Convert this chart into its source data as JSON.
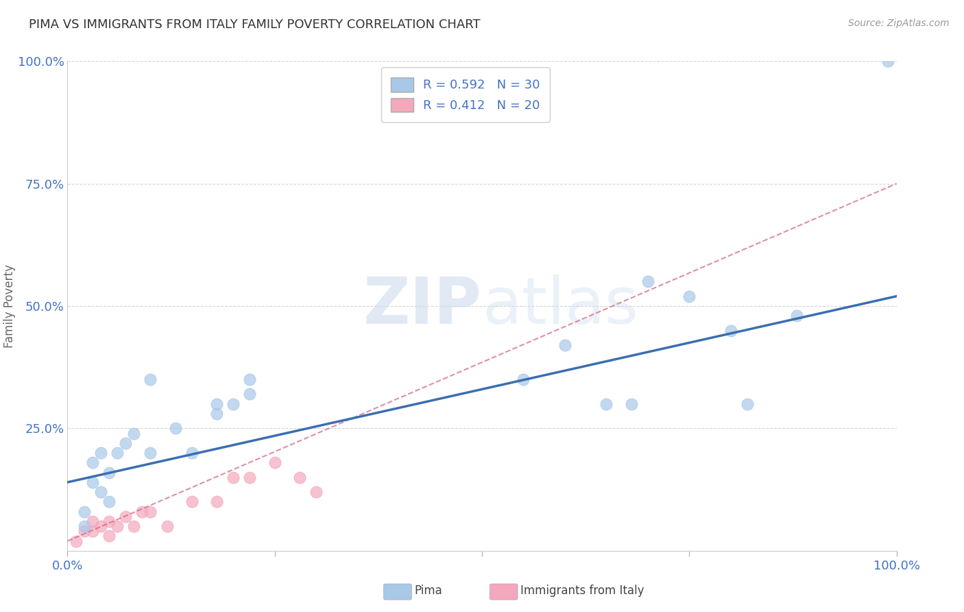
{
  "title": "PIMA VS IMMIGRANTS FROM ITALY FAMILY POVERTY CORRELATION CHART",
  "source": "Source: ZipAtlas.com",
  "xlabel": "",
  "ylabel": "Family Poverty",
  "xlim": [
    0,
    100
  ],
  "ylim": [
    0,
    100
  ],
  "xticks": [
    0,
    25,
    50,
    75,
    100
  ],
  "yticks": [
    0,
    25,
    50,
    75,
    100
  ],
  "xtick_labels": [
    "0.0%",
    "",
    "",
    "",
    "100.0%"
  ],
  "ytick_labels": [
    "",
    "25.0%",
    "50.0%",
    "75.0%",
    "100.0%"
  ],
  "pima_color": "#A8C8E8",
  "pima_edge_color": "#A8C8E8",
  "pima_line_color": "#3A6FB0",
  "italy_color": "#F4A8BC",
  "italy_edge_color": "#F4A8BC",
  "italy_line_color": "#D06080",
  "legend_label_pima": "Pima",
  "legend_label_italy": "Immigrants from Italy",
  "pima_R": 0.592,
  "pima_N": 30,
  "italy_R": 0.412,
  "italy_N": 20,
  "watermark_zip": "ZIP",
  "watermark_atlas": "atlas",
  "background_color": "#ffffff",
  "pima_x": [
    2,
    2,
    3,
    3,
    4,
    4,
    5,
    5,
    6,
    7,
    8,
    10,
    10,
    13,
    15,
    18,
    18,
    20,
    22,
    22,
    55,
    60,
    65,
    68,
    70,
    75,
    80,
    82,
    88,
    99
  ],
  "pima_y": [
    5,
    8,
    14,
    18,
    12,
    20,
    10,
    16,
    20,
    22,
    24,
    20,
    35,
    25,
    20,
    28,
    30,
    30,
    32,
    35,
    35,
    42,
    30,
    30,
    55,
    52,
    45,
    30,
    48,
    100
  ],
  "italy_x": [
    1,
    2,
    3,
    3,
    4,
    5,
    5,
    6,
    7,
    8,
    9,
    10,
    12,
    15,
    18,
    20,
    22,
    25,
    28,
    30
  ],
  "italy_y": [
    2,
    4,
    4,
    6,
    5,
    3,
    6,
    5,
    7,
    5,
    8,
    8,
    5,
    10,
    10,
    15,
    15,
    18,
    15,
    12
  ],
  "pima_line_x0": 0,
  "pima_line_y0": 14,
  "pima_line_x1": 100,
  "pima_line_y1": 52,
  "italy_line_x0": 0,
  "italy_line_y0": 2,
  "italy_line_x1": 100,
  "italy_line_y1": 75
}
